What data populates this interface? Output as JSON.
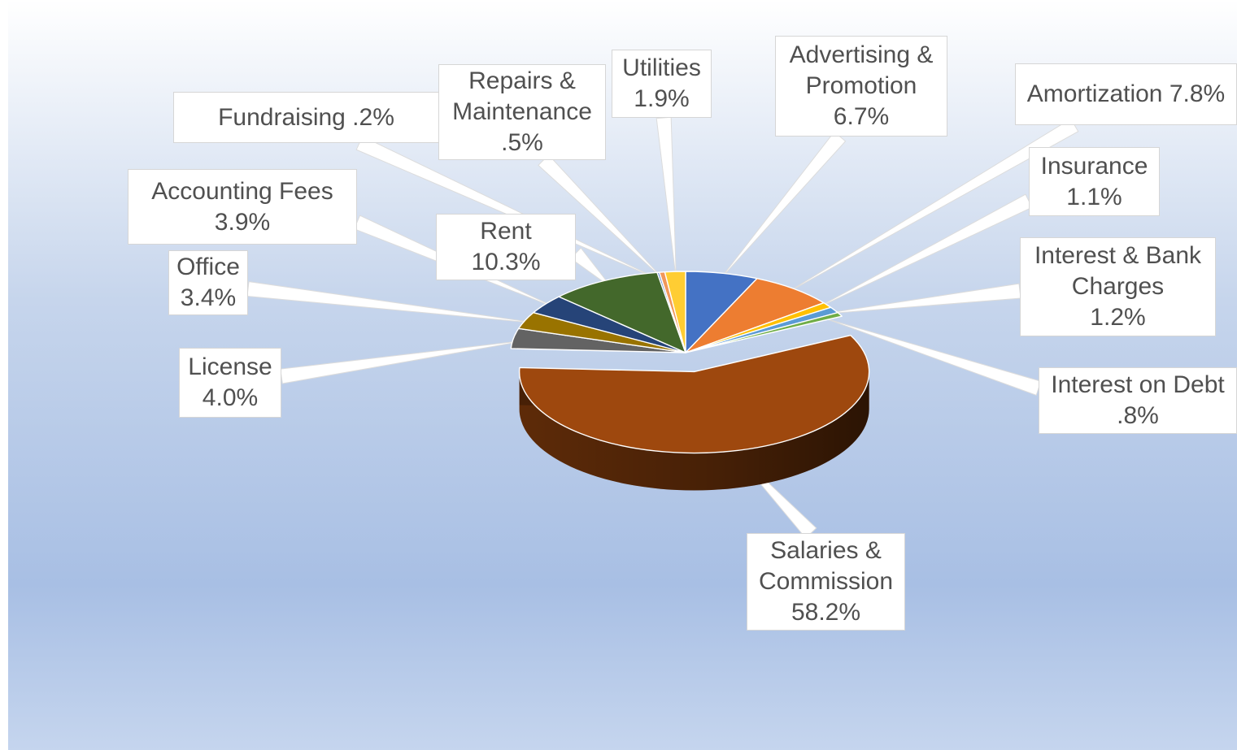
{
  "chart_data": {
    "type": "pie",
    "title": "",
    "three_d": true,
    "exploded_slice": "Salaries & Commission",
    "legend": "none",
    "slices": [
      {
        "name": "Advertising & Promotion",
        "value": 6.7,
        "label": "Advertising &\nPromotion\n6.7%",
        "color": "#4472c4"
      },
      {
        "name": "Amortization",
        "value": 7.8,
        "label": "Amortization 7.8%",
        "color": "#ed7d31"
      },
      {
        "name": "Insurance",
        "value": 1.1,
        "label": "Insurance\n1.1%",
        "color": "#ffc000"
      },
      {
        "name": "Interest & Bank Charges",
        "value": 1.2,
        "label": "Interest & Bank\nCharges\n1.2%",
        "color": "#5b9bd5"
      },
      {
        "name": "Interest on Debt",
        "value": 0.8,
        "label": "Interest on Debt\n.8%",
        "color": "#70ad47"
      },
      {
        "name": "Salaries & Commission",
        "value": 58.2,
        "label": "Salaries &\nCommission\n58.2%",
        "color": "#9e480e"
      },
      {
        "name": "License",
        "value": 4.0,
        "label": "License\n4.0%",
        "color": "#636363"
      },
      {
        "name": "Office",
        "value": 3.4,
        "label": "Office\n3.4%",
        "color": "#997300"
      },
      {
        "name": "Accounting Fees",
        "value": 3.9,
        "label": "Accounting Fees\n3.9%",
        "color": "#264478"
      },
      {
        "name": "Rent",
        "value": 10.3,
        "label": "Rent\n10.3%",
        "color": "#43682b"
      },
      {
        "name": "Fundraising",
        "value": 0.2,
        "label": "Fundraising .2%",
        "color": "#698ed0"
      },
      {
        "name": "Repairs & Maintenance",
        "value": 0.5,
        "label": "Repairs &\nMaintenance\n.5%",
        "color": "#f1975a"
      },
      {
        "name": "Utilities",
        "value": 1.9,
        "label": "Utilities\n1.9%",
        "color": "#ffcd33"
      }
    ]
  }
}
